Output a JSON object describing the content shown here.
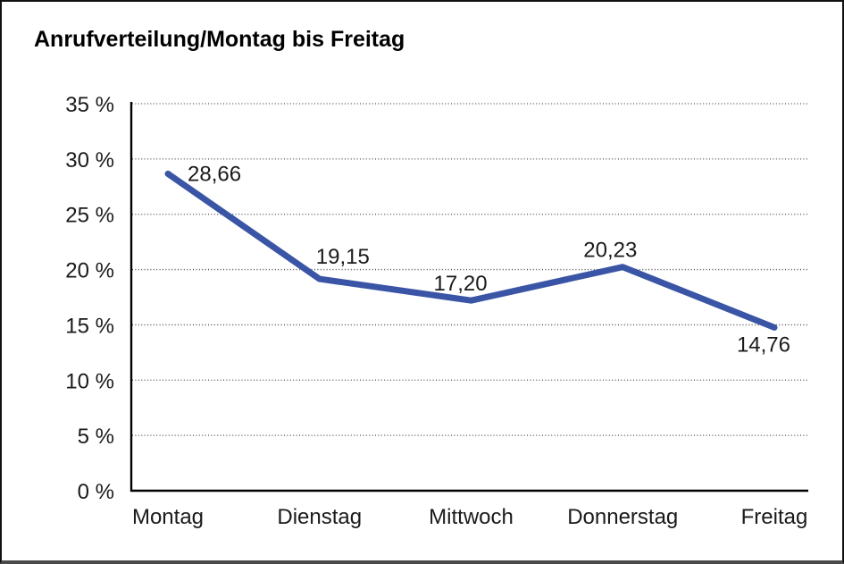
{
  "title": "Anrufverteilung/Montag bis Freitag",
  "chart_data": {
    "type": "line",
    "title": "Anrufverteilung/Montag bis Freitag",
    "categories": [
      "Montag",
      "Dienstag",
      "Mittwoch",
      "Donnerstag",
      "Freitag"
    ],
    "values": [
      28.66,
      19.15,
      17.2,
      20.23,
      14.76
    ],
    "value_labels": [
      "28,66",
      "19,15",
      "17,20",
      "20,23",
      "14,76"
    ],
    "y_tick_labels": [
      "35 %",
      "30 %",
      "25 %",
      "20 %",
      "15 %",
      "10 %",
      "5 %",
      "0 %"
    ],
    "y_tick_values": [
      35,
      30,
      25,
      20,
      15,
      10,
      5,
      0
    ],
    "ylim": [
      0,
      35
    ],
    "xlabel": "",
    "ylabel": "",
    "grid": "horizontal-dotted",
    "legend": "none",
    "markers": "none"
  },
  "colors": {
    "series_line": "#3A55A5",
    "grid_line": "#4d4d4d",
    "axis_line": "#000000",
    "text": "#1a1a1a",
    "background": "#ffffff",
    "frame_border": "#111111",
    "frame_border_bottom": "#4a4a4a"
  }
}
